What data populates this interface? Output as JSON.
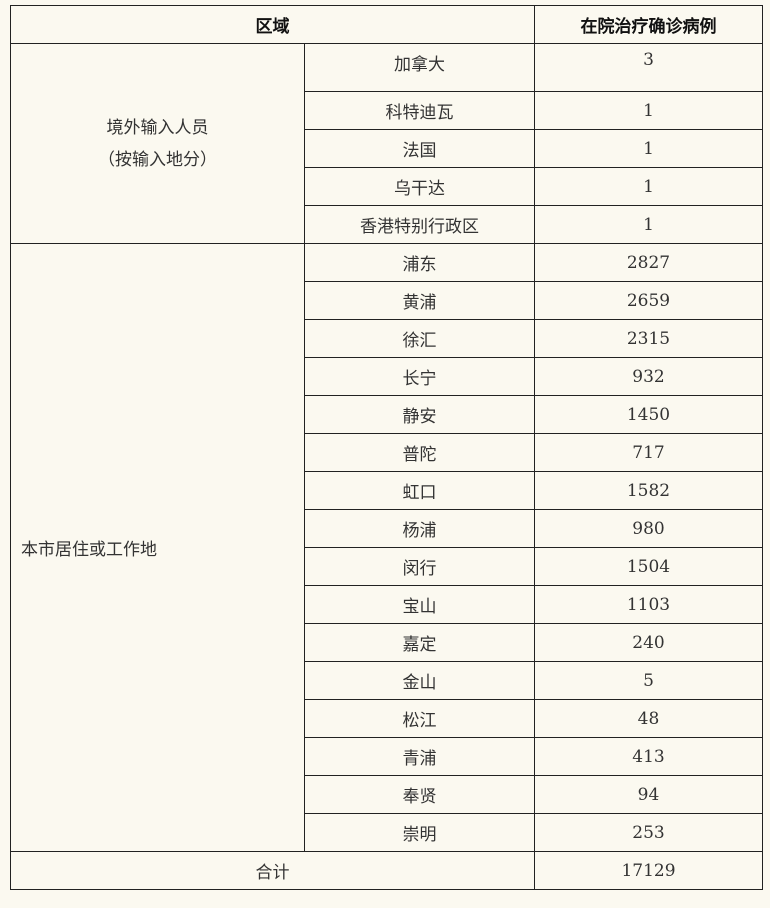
{
  "header": {
    "region": "区域",
    "cases": "在院治疗确诊病例"
  },
  "imported": {
    "label_line1": "境外输入人员",
    "label_line2": "（按输入地分）",
    "rows": [
      {
        "area": "加拿大",
        "count": "3"
      },
      {
        "area": "科特迪瓦",
        "count": "1"
      },
      {
        "area": "法国",
        "count": "1"
      },
      {
        "area": "乌干达",
        "count": "1"
      },
      {
        "area": "香港特别行政区",
        "count": "1"
      }
    ]
  },
  "local": {
    "label": "本市居住或工作地",
    "rows": [
      {
        "area": "浦东",
        "count": "2827"
      },
      {
        "area": "黄浦",
        "count": "2659"
      },
      {
        "area": "徐汇",
        "count": "2315"
      },
      {
        "area": "长宁",
        "count": "932"
      },
      {
        "area": "静安",
        "count": "1450"
      },
      {
        "area": "普陀",
        "count": "717"
      },
      {
        "area": "虹口",
        "count": "1582"
      },
      {
        "area": "杨浦",
        "count": "980"
      },
      {
        "area": "闵行",
        "count": "1504"
      },
      {
        "area": "宝山",
        "count": "1103"
      },
      {
        "area": "嘉定",
        "count": "240"
      },
      {
        "area": "金山",
        "count": "5"
      },
      {
        "area": "松江",
        "count": "48"
      },
      {
        "area": "青浦",
        "count": "413"
      },
      {
        "area": "奉贤",
        "count": "94"
      },
      {
        "area": "崇明",
        "count": "253"
      }
    ]
  },
  "total": {
    "label": "合计",
    "count": "17129"
  }
}
